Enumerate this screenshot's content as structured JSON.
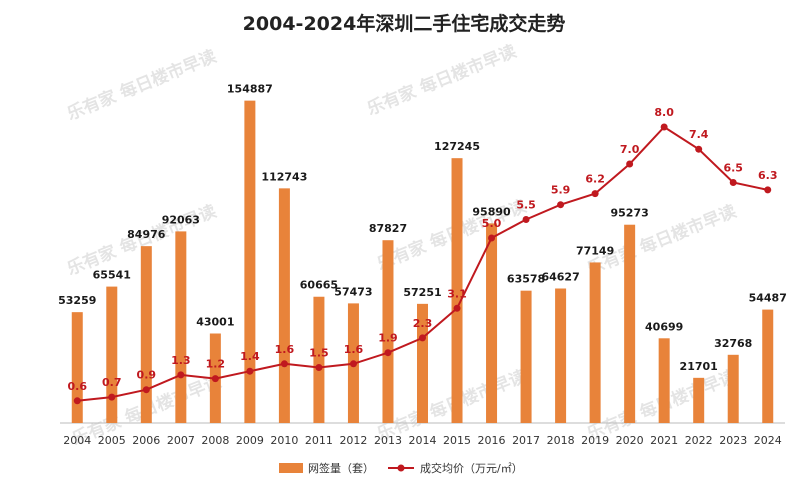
{
  "chart_data": {
    "type": "bar",
    "title": "2004-2024年深圳二手住宅成交走势",
    "categories": [
      "2004",
      "2005",
      "2006",
      "2007",
      "2008",
      "2009",
      "2010",
      "2011",
      "2012",
      "2013",
      "2014",
      "2015",
      "2016",
      "2017",
      "2018",
      "2019",
      "2020",
      "2021",
      "2022",
      "2023",
      "2024"
    ],
    "series": [
      {
        "name": "网签量（套）",
        "type": "bar",
        "axis": "left",
        "values": [
          53259,
          65541,
          84976,
          92063,
          43001,
          154887,
          112743,
          60665,
          57473,
          87827,
          57251,
          127245,
          95890,
          63578,
          64627,
          77149,
          95273,
          40699,
          21701,
          32768,
          54487
        ]
      },
      {
        "name": "成交均价（万元/㎡）",
        "type": "line",
        "axis": "right",
        "values": [
          0.6,
          0.7,
          0.9,
          1.3,
          1.2,
          1.4,
          1.6,
          1.5,
          1.6,
          1.9,
          2.3,
          3.1,
          5.0,
          5.5,
          5.9,
          6.2,
          7.0,
          8.0,
          7.4,
          6.5,
          6.3
        ]
      }
    ],
    "ylim_left": [
      0,
      160000
    ],
    "ylim_right": [
      0,
      9
    ],
    "grid": false,
    "legend": "bottom-center",
    "colors": {
      "bar": "#E8833A",
      "line": "#C0191F",
      "price_label": "#C0191F",
      "baseline": "#bbbbbb"
    },
    "watermark": {
      "brand": "乐有家",
      "text": "每日楼市早读"
    }
  }
}
